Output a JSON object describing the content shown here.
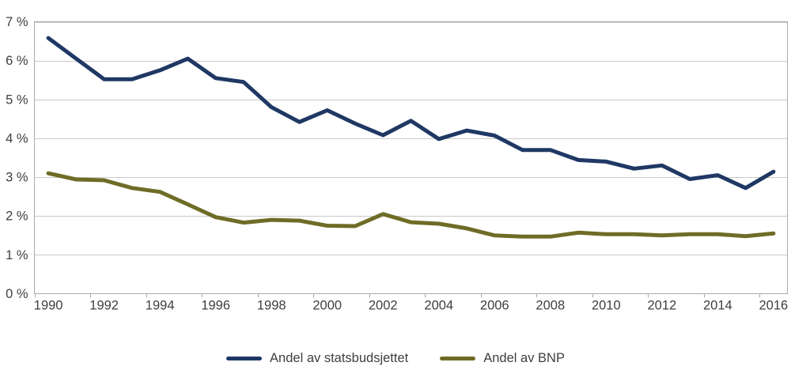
{
  "chart_data": {
    "type": "line",
    "title": "",
    "xlabel": "",
    "ylabel": "",
    "x": [
      1990,
      1991,
      1992,
      1993,
      1994,
      1995,
      1996,
      1997,
      1998,
      1999,
      2000,
      2001,
      2002,
      2003,
      2004,
      2005,
      2006,
      2007,
      2008,
      2009,
      2010,
      2011,
      2012,
      2013,
      2014,
      2015,
      2016
    ],
    "x_tick_labels": [
      "1990",
      "1992",
      "1994",
      "1996",
      "1998",
      "2000",
      "2002",
      "2004",
      "2006",
      "2008",
      "2010",
      "2012",
      "2014",
      "2016"
    ],
    "y_tick_labels": [
      "0 %",
      "1 %",
      "2 %",
      "3 %",
      "4 %",
      "5 %",
      "6 %",
      "7 %"
    ],
    "ylim": [
      0,
      7
    ],
    "grid": true,
    "legend_position": "bottom-center",
    "series": [
      {
        "name": "Andel av statsbudsjettet",
        "color": "#1f3864",
        "values": [
          6.58,
          6.05,
          5.52,
          5.52,
          5.75,
          6.05,
          5.55,
          5.45,
          4.8,
          4.42,
          4.72,
          4.38,
          4.08,
          4.45,
          3.98,
          4.2,
          4.07,
          3.7,
          3.7,
          3.44,
          3.4,
          3.22,
          3.3,
          2.95,
          3.05,
          2.72,
          3.14
        ]
      },
      {
        "name": "Andel av BNP",
        "color": "#6e6c26",
        "values": [
          3.1,
          2.94,
          2.92,
          2.72,
          2.62,
          2.3,
          1.97,
          1.83,
          1.9,
          1.88,
          1.75,
          1.74,
          2.05,
          1.84,
          1.8,
          1.68,
          1.5,
          1.47,
          1.47,
          1.57,
          1.53,
          1.53,
          1.5,
          1.53,
          1.53,
          1.48,
          1.55
        ]
      }
    ],
    "style": {
      "gridline_color": "#c9c9c9",
      "border_color": "#aaaaaa",
      "tick_color": "#aaaaaa",
      "label_color": "#3f3f3f",
      "line_width": 5
    }
  }
}
